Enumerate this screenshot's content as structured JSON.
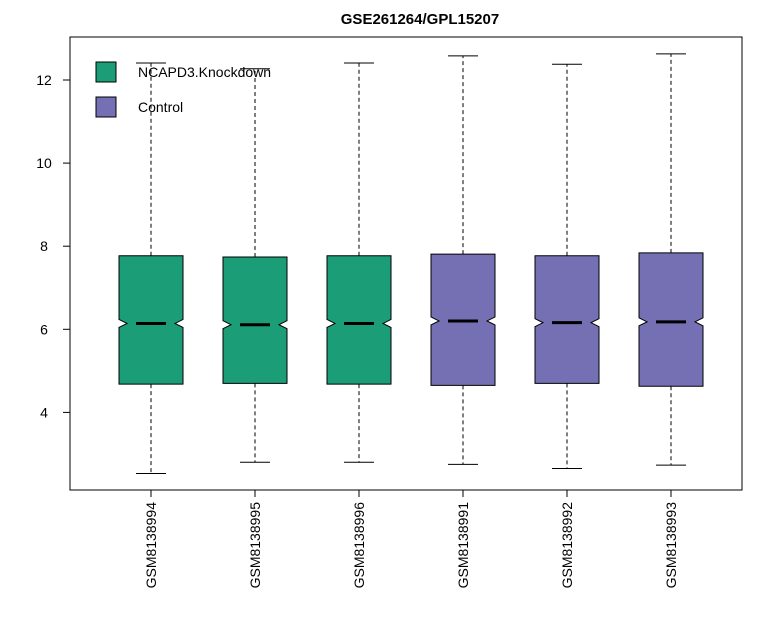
{
  "chart_data": {
    "type": "boxplot",
    "title": "GSE261264/GPL15207",
    "xlabel": "",
    "ylabel": "",
    "ylim": [
      2.0,
      12.9
    ],
    "yticks": [
      4,
      6,
      8,
      10,
      12
    ],
    "notched": true,
    "grid": false,
    "legend_position": "top-left",
    "groups": [
      {
        "name": "NCAPD3.Knockdown",
        "color": "#1b9e77"
      },
      {
        "name": "Control",
        "color": "#7570b3"
      }
    ],
    "categories": [
      "GSM8138994",
      "GSM8138995",
      "GSM8138996",
      "GSM8138991",
      "GSM8138992",
      "GSM8138993"
    ],
    "boxes": [
      {
        "label": "GSM8138994",
        "group": "NCAPD3.Knockdown",
        "min": 2.53,
        "q1": 4.68,
        "median": 6.14,
        "q3": 7.77,
        "max": 12.41
      },
      {
        "label": "GSM8138995",
        "group": "NCAPD3.Knockdown",
        "min": 2.8,
        "q1": 4.7,
        "median": 6.11,
        "q3": 7.74,
        "max": 12.27
      },
      {
        "label": "GSM8138996",
        "group": "NCAPD3.Knockdown",
        "min": 2.8,
        "q1": 4.68,
        "median": 6.14,
        "q3": 7.77,
        "max": 12.41
      },
      {
        "label": "GSM8138991",
        "group": "Control",
        "min": 2.75,
        "q1": 4.65,
        "median": 6.2,
        "q3": 7.81,
        "max": 12.58
      },
      {
        "label": "GSM8138992",
        "group": "Control",
        "min": 2.65,
        "q1": 4.7,
        "median": 6.16,
        "q3": 7.77,
        "max": 12.38
      },
      {
        "label": "GSM8138993",
        "group": "Control",
        "min": 2.73,
        "q1": 4.63,
        "median": 6.18,
        "q3": 7.84,
        "max": 12.63
      }
    ]
  }
}
